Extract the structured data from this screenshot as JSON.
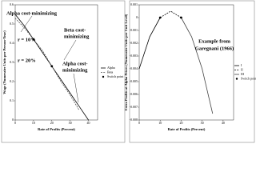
{
  "chart_data": [
    {
      "type": "line",
      "x_label": "Rate of Profits (Percent)",
      "y_label": "Wage (Numeraire Units per Person-Year)",
      "xlim": [
        0,
        45
      ],
      "xticks": [
        0,
        10,
        20,
        30,
        40
      ],
      "ylim": [
        0,
        0.6
      ],
      "yticks": [
        0,
        0.1,
        0.2,
        0.3,
        0.4,
        0.5,
        0.6
      ],
      "x": [
        0,
        5,
        10,
        15,
        20,
        25,
        30,
        35,
        40
      ],
      "series": [
        {
          "name": "Alpha",
          "color": "#000000",
          "dash": false,
          "values": [
            0.55,
            0.49,
            0.42,
            0.35,
            0.28,
            0.21,
            0.14,
            0.07,
            0
          ]
        },
        {
          "name": "Beta",
          "color": "#555555",
          "dash": true,
          "values": [
            0.53,
            0.48,
            0.42,
            0.36,
            0.28,
            0.2,
            0.13,
            0.05,
            null
          ]
        }
      ],
      "switch_points": {
        "name": "Switch point",
        "color": "#000000",
        "x": [
          10,
          20
        ],
        "values": [
          0.42,
          0.28
        ]
      },
      "annotations": [
        "Alpha cost-minimizing",
        "Beta cost-",
        "minimizing",
        "r = 10%",
        "r = 20%",
        "Alpha cost-",
        "minimizing"
      ]
    },
    {
      "type": "line",
      "x_label": "Rate of Profits (Percent)",
      "y_label": "Extra Profits at Alpha Prices (Numeraire Units per Unit Level)",
      "xlim": [
        0,
        45
      ],
      "xticks": [
        0,
        10,
        20,
        30,
        40
      ],
      "ylim": [
        -0.008,
        0.001
      ],
      "yticks": [
        -0.008,
        -0.007,
        -0.006,
        -0.005,
        -0.004,
        -0.003,
        -0.002,
        -0.001,
        0,
        0.001
      ],
      "x": [
        0,
        5,
        10,
        15,
        20,
        25,
        30,
        35
      ],
      "series": [
        {
          "name": "I",
          "color": "#000000",
          "dash": false,
          "values": [
            -0.004,
            -0.0015,
            0,
            null,
            null,
            null,
            null,
            null
          ]
        },
        {
          "name": "II",
          "color": "#000000",
          "dash": true,
          "values": [
            null,
            null,
            0,
            0.0005,
            0,
            null,
            null,
            null
          ]
        },
        {
          "name": "III",
          "color": "#444444",
          "dash": false,
          "values": [
            null,
            null,
            null,
            null,
            0,
            -0.0015,
            -0.004,
            -0.0075
          ]
        }
      ],
      "switch_points": {
        "name": "Switch point",
        "color": "#000000",
        "x": [
          10,
          20
        ],
        "values": [
          0,
          0
        ]
      },
      "annotations": [
        "Example from",
        "Garegnani (1966)"
      ]
    }
  ]
}
